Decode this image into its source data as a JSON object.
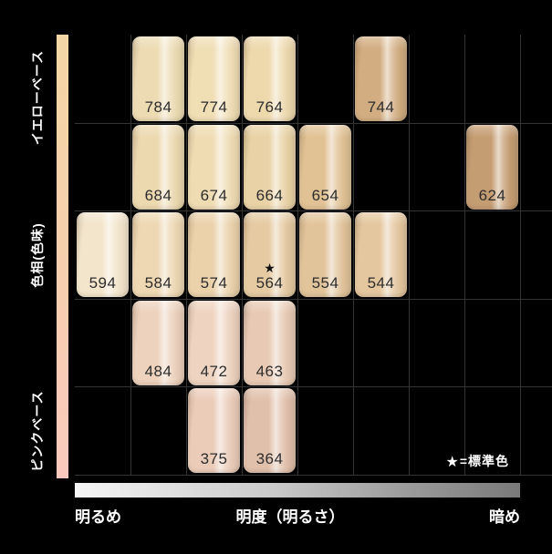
{
  "legend": {
    "star": "★",
    "text": "=標準色"
  },
  "chart_data": {
    "type": "heatmap",
    "description_visible_text_only": true,
    "x_axis": {
      "label": "明度（明るさ）",
      "left_label": "明るめ",
      "right_label": "暗め",
      "ticks": [
        9,
        8,
        7,
        6,
        5,
        4,
        3,
        2
      ],
      "bar_colors": [
        "#f5f5f5",
        "#7a7a7a"
      ]
    },
    "y_axis": {
      "label": "色相(色味)",
      "top_group_label": "イエローベース",
      "bottom_group_label": "ピンクベース",
      "ticks": [
        7,
        6,
        5,
        4,
        3
      ],
      "bar_colors": [
        "#f3d6a5",
        "#fbc9be"
      ]
    },
    "standard_marker": {
      "symbol": "★",
      "meaning": "標準色",
      "applies_to": "564"
    },
    "points": [
      {
        "code": "784",
        "hue": 7,
        "brightness": 8,
        "color": "#eddcb3",
        "standard": false
      },
      {
        "code": "774",
        "hue": 7,
        "brightness": 7,
        "color": "#f0deb5",
        "standard": false
      },
      {
        "code": "764",
        "hue": 7,
        "brightness": 6,
        "color": "#eed9ad",
        "standard": false
      },
      {
        "code": "744",
        "hue": 7,
        "brightness": 4,
        "color": "#d2ad81",
        "standard": false
      },
      {
        "code": "684",
        "hue": 6,
        "brightness": 8,
        "color": "#ecd9b0",
        "standard": false
      },
      {
        "code": "674",
        "hue": 6,
        "brightness": 7,
        "color": "#efdcb3",
        "standard": false
      },
      {
        "code": "664",
        "hue": 6,
        "brightness": 6,
        "color": "#e9d2a5",
        "standard": false
      },
      {
        "code": "654",
        "hue": 6,
        "brightness": 5,
        "color": "#e1c295",
        "standard": false
      },
      {
        "code": "624",
        "hue": 6,
        "brightness": 2,
        "color": "#c59d73",
        "standard": false
      },
      {
        "code": "594",
        "hue": 5,
        "brightness": 9,
        "color": "#f3e5cb",
        "standard": false
      },
      {
        "code": "584",
        "hue": 5,
        "brightness": 8,
        "color": "#eed8b3",
        "standard": false
      },
      {
        "code": "574",
        "hue": 5,
        "brightness": 7,
        "color": "#ebd2ab",
        "standard": false
      },
      {
        "code": "564",
        "hue": 5,
        "brightness": 6,
        "color": "#e5caa2",
        "standard": true
      },
      {
        "code": "554",
        "hue": 5,
        "brightness": 5,
        "color": "#e2c49b",
        "standard": false
      },
      {
        "code": "544",
        "hue": 5,
        "brightness": 4,
        "color": "#e5c79f",
        "standard": false
      },
      {
        "code": "484",
        "hue": 4,
        "brightness": 8,
        "color": "#edd2bd",
        "standard": false
      },
      {
        "code": "472",
        "hue": 4,
        "brightness": 7,
        "color": "#eed3c0",
        "standard": false
      },
      {
        "code": "463",
        "hue": 4,
        "brightness": 6,
        "color": "#e8cab4",
        "standard": false
      },
      {
        "code": "375",
        "hue": 3,
        "brightness": 7,
        "color": "#ebccb9",
        "standard": false
      },
      {
        "code": "364",
        "hue": 3,
        "brightness": 6,
        "color": "#e1c0ab",
        "standard": false
      }
    ]
  }
}
